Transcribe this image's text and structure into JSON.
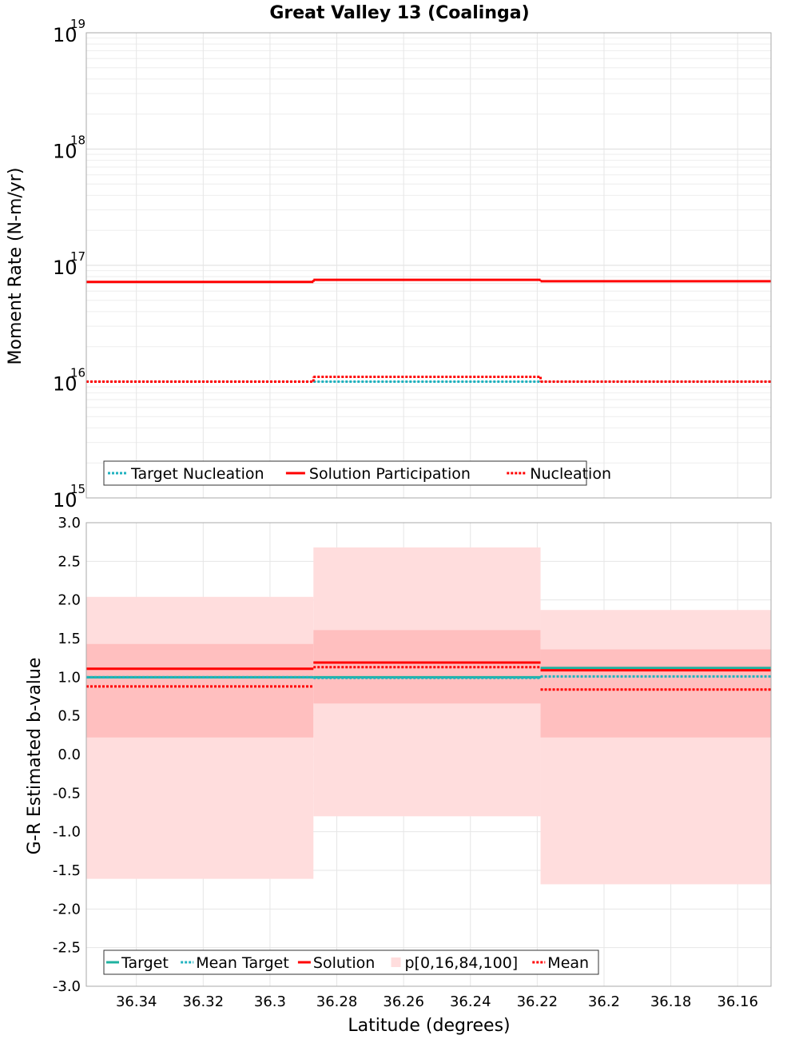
{
  "chart_data": {
    "title": "Great Valley 13 (Coalinga)",
    "xlabel": "Latitude (degrees)",
    "x_ticks": [
      "36.34",
      "36.32",
      "36.3",
      "36.28",
      "36.26",
      "36.24",
      "36.22",
      "36.2",
      "36.18",
      "36.16"
    ],
    "x_tick_values": [
      36.34,
      36.32,
      36.3,
      36.28,
      36.26,
      36.24,
      36.22,
      36.2,
      36.18,
      36.16
    ],
    "xlim": [
      36.355,
      36.15
    ],
    "grid": true,
    "panels": [
      {
        "type": "line",
        "ylabel": "Moment Rate (N-m/yr)",
        "yscale": "log",
        "ylim": [
          1000000000000000.0,
          1e+19
        ],
        "y_ticks": [
          {
            "base": "10",
            "exp": "15",
            "value": 1000000000000000.0
          },
          {
            "base": "10",
            "exp": "16",
            "value": 1e+16
          },
          {
            "base": "10",
            "exp": "17",
            "value": 1e+17
          },
          {
            "base": "10",
            "exp": "18",
            "value": 1e+18
          },
          {
            "base": "10",
            "exp": "19",
            "value": 1e+19
          }
        ],
        "segments": [
          [
            36.355,
            36.287
          ],
          [
            36.287,
            36.219
          ],
          [
            36.219,
            36.15
          ]
        ],
        "series": [
          {
            "name": "Target Nucleation",
            "style": "dotted",
            "color": "#1fb2bf",
            "values": [
              1e+16,
              1e+16,
              1e+16
            ]
          },
          {
            "name": "Solution Participation",
            "style": "solid",
            "color": "#ff0000",
            "values": [
              7.2e+16,
              7.5e+16,
              7.3e+16
            ]
          },
          {
            "name": "Nucleation",
            "style": "dotted",
            "color": "#ff0000",
            "values": [
              1e+16,
              1.1e+16,
              1e+16
            ]
          }
        ],
        "legend_position": "bottom-left"
      },
      {
        "type": "line",
        "ylabel": "G-R Estimated b-value",
        "yscale": "linear",
        "ylim": [
          -3.0,
          3.0
        ],
        "y_ticks": [
          "3.0",
          "2.5",
          "2.0",
          "1.5",
          "1.0",
          "0.5",
          "0.0",
          "-0.5",
          "-1.0",
          "-1.5",
          "-2.0",
          "-2.5",
          "-3.0"
        ],
        "y_tick_values": [
          3.0,
          2.5,
          2.0,
          1.5,
          1.0,
          0.5,
          0.0,
          -0.5,
          -1.0,
          -1.5,
          -2.0,
          -2.5,
          -3.0
        ],
        "segments": [
          [
            36.355,
            36.287
          ],
          [
            36.287,
            36.219
          ],
          [
            36.219,
            36.15
          ]
        ],
        "bands": {
          "name": "p[0,16,84,100]",
          "outer_color": "#ffdddd",
          "inner_color": "#ffbfbf",
          "p0": [
            -1.61,
            -0.8,
            -1.68
          ],
          "p16": [
            0.22,
            0.66,
            0.22
          ],
          "p84": [
            1.43,
            1.61,
            1.36
          ],
          "p100": [
            2.04,
            2.68,
            1.87
          ]
        },
        "series": [
          {
            "name": "Target",
            "style": "solid",
            "color": "#1fb2a0",
            "values": [
              1.0,
              1.0,
              1.12
            ]
          },
          {
            "name": "Mean Target",
            "style": "dotted",
            "color": "#1fb2bf",
            "values": [
              1.0,
              0.99,
              1.01
            ]
          },
          {
            "name": "Solution",
            "style": "solid",
            "color": "#ff0000",
            "values": [
              1.11,
              1.19,
              1.09
            ]
          },
          {
            "name": "Mean",
            "style": "dotted",
            "color": "#ff0000",
            "values": [
              0.88,
              1.13,
              0.84
            ]
          }
        ],
        "legend_order": [
          "Target",
          "Mean Target",
          "Solution",
          "p[0,16,84,100]",
          "Mean"
        ],
        "legend_position": "bottom-left"
      }
    ]
  }
}
